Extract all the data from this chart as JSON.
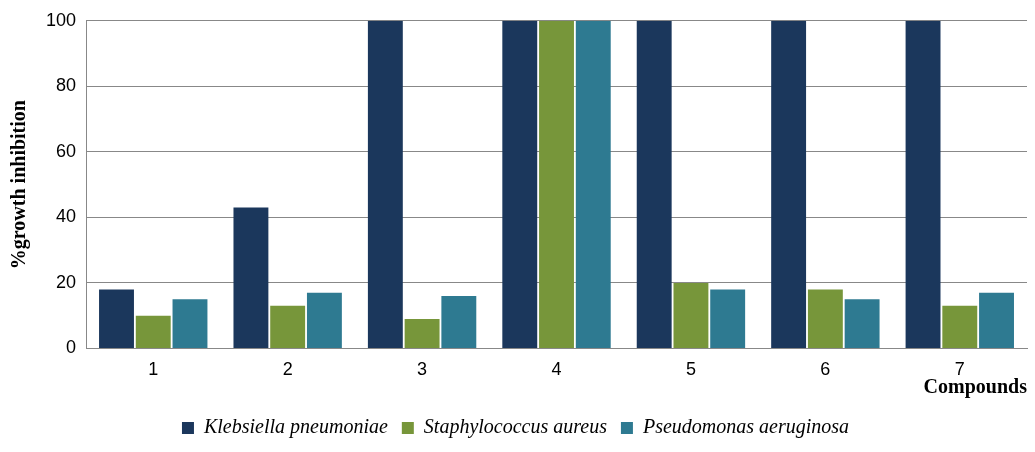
{
  "chart_data": {
    "type": "bar",
    "xlabel": "Compounds",
    "ylabel": "%growth inhibition",
    "categories": [
      "1",
      "2",
      "3",
      "4",
      "5",
      "6",
      "7"
    ],
    "series": [
      {
        "name": "Klebsiella pneumoniae",
        "color": "#1b375c",
        "values": [
          18,
          43,
          100,
          100,
          100,
          100,
          100
        ]
      },
      {
        "name": "Staphylococcus aureus",
        "color": "#77963a",
        "values": [
          10,
          13,
          9,
          100,
          20,
          18,
          13
        ]
      },
      {
        "name": "Pseudomonas aeruginosa",
        "color": "#2e7a91",
        "values": [
          15,
          17,
          16,
          100,
          18,
          15,
          17
        ]
      }
    ],
    "ylim": [
      0,
      100
    ],
    "yticks": [
      0,
      20,
      40,
      60,
      80,
      100
    ],
    "grid": "y",
    "legend": "bottom"
  }
}
